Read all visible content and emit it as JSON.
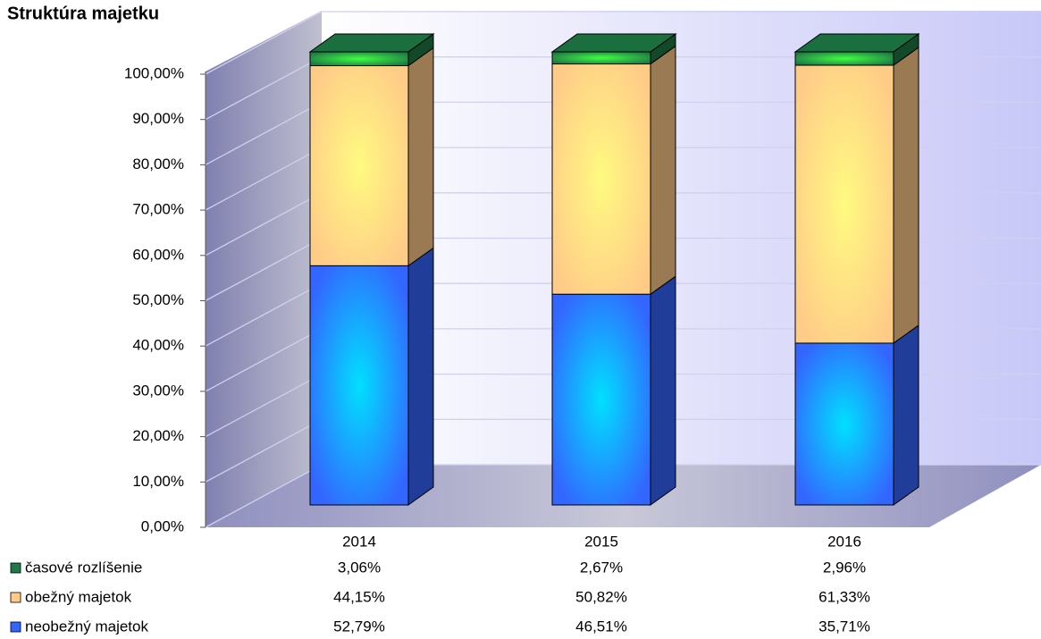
{
  "chart_data": {
    "type": "bar",
    "stacked": true,
    "title": "Struktúra majetku",
    "categories": [
      "2014",
      "2015",
      "2016"
    ],
    "series": [
      {
        "name": "neobežný majetok",
        "color": "#3366ff",
        "values": [
          52.79,
          46.51,
          35.71
        ],
        "value_labels": [
          "52,79%",
          "46,51%",
          "35,71%"
        ]
      },
      {
        "name": "obežný majetok",
        "color": "#ffcc88",
        "values": [
          44.15,
          50.82,
          61.33
        ],
        "value_labels": [
          "44,15%",
          "50,82%",
          "61,33%"
        ]
      },
      {
        "name": "časové rozlíšenie",
        "color": "#1e7a45",
        "values": [
          3.06,
          2.67,
          2.96
        ],
        "value_labels": [
          "3,06%",
          "2,67%",
          "2,96%"
        ]
      }
    ],
    "ylim": [
      0,
      100
    ],
    "yticks": [
      {
        "value": 0,
        "label": "0,00%"
      },
      {
        "value": 10,
        "label": "10,00%"
      },
      {
        "value": 20,
        "label": "20,00%"
      },
      {
        "value": 30,
        "label": "30,00%"
      },
      {
        "value": 40,
        "label": "40,00%"
      },
      {
        "value": 50,
        "label": "50,00%"
      },
      {
        "value": 60,
        "label": "60,00%"
      },
      {
        "value": 70,
        "label": "70,00%"
      },
      {
        "value": 80,
        "label": "80,00%"
      },
      {
        "value": 90,
        "label": "90,00%"
      },
      {
        "value": 100,
        "label": "100,00%"
      }
    ],
    "grid": true
  }
}
